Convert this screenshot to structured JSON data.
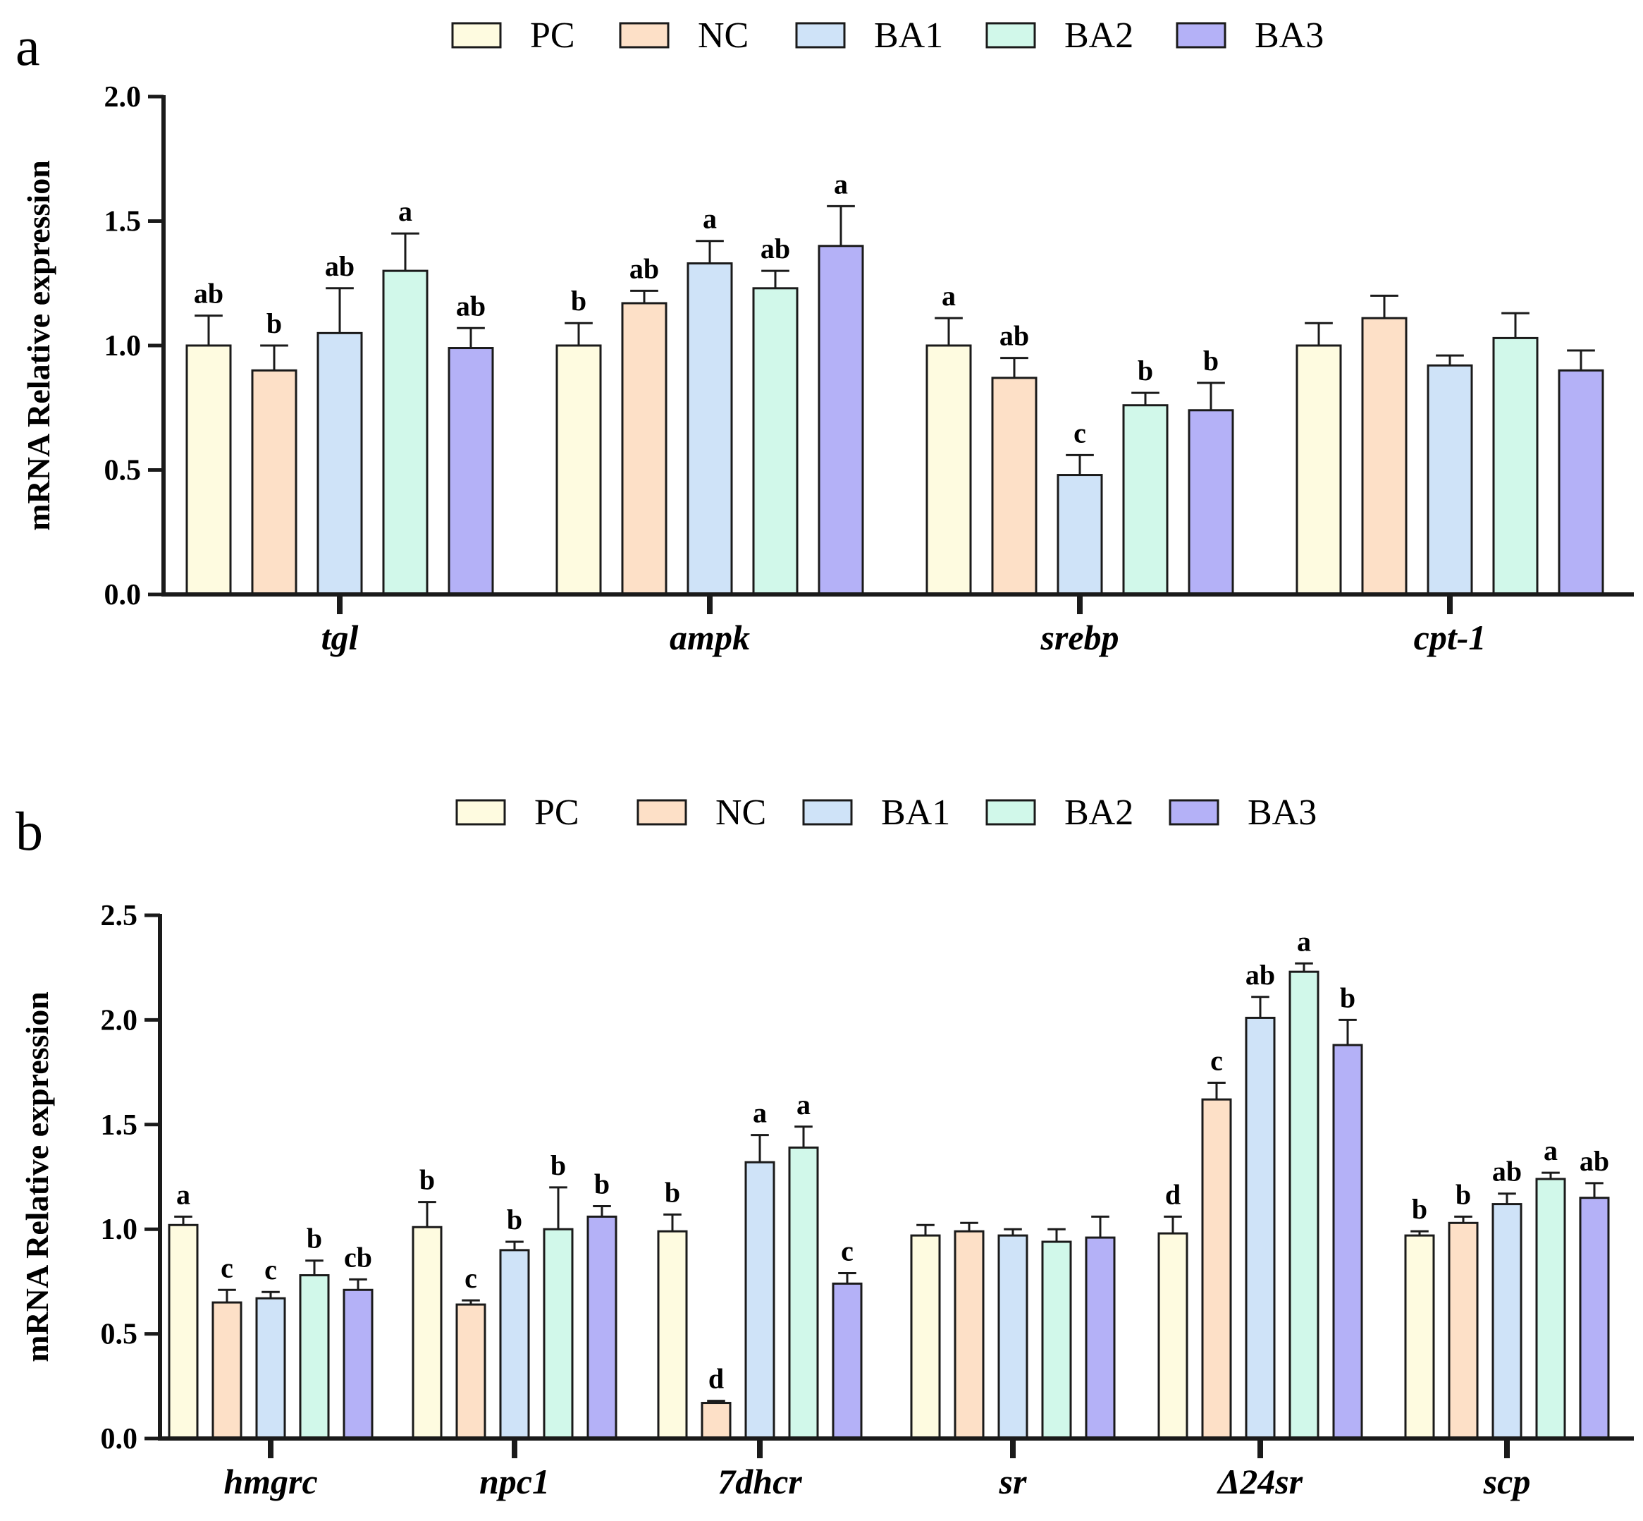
{
  "colors": {
    "PC": "#fefbe0",
    "NC": "#fde0c7",
    "BA1": "#cfe3f8",
    "BA2": "#d1f8ea",
    "BA3": "#b4b1f7",
    "stroke": "#1a1a1a"
  },
  "chart_data": [
    {
      "panel": "a",
      "type": "bar",
      "title": "",
      "xlabel": "",
      "ylabel": "mRNA Relative expression",
      "ylim": [
        0,
        2.0
      ],
      "yticks": [
        "0.0",
        "0.5",
        "1.0",
        "1.5",
        "2.0"
      ],
      "legend": [
        "PC",
        "NC",
        "BA1",
        "BA2",
        "BA3"
      ],
      "legend_position": "top-center",
      "categories": [
        "tgl",
        "ampk",
        "srebp",
        "cpt-1"
      ],
      "series": [
        {
          "name": "PC",
          "values": [
            1.0,
            1.0,
            1.0,
            1.0
          ],
          "errors": [
            0.12,
            0.09,
            0.11,
            0.09
          ],
          "labels": [
            "ab",
            "b",
            "a",
            ""
          ]
        },
        {
          "name": "NC",
          "values": [
            0.9,
            1.17,
            0.87,
            1.11
          ],
          "errors": [
            0.1,
            0.05,
            0.08,
            0.09
          ],
          "labels": [
            "b",
            "ab",
            "ab",
            ""
          ]
        },
        {
          "name": "BA1",
          "values": [
            1.05,
            1.33,
            0.48,
            0.92
          ],
          "errors": [
            0.18,
            0.09,
            0.08,
            0.04
          ],
          "labels": [
            "ab",
            "a",
            "c",
            ""
          ]
        },
        {
          "name": "BA2",
          "values": [
            1.3,
            1.23,
            0.76,
            1.03
          ],
          "errors": [
            0.15,
            0.07,
            0.05,
            0.1
          ],
          "labels": [
            "a",
            "ab",
            "b",
            ""
          ]
        },
        {
          "name": "BA3",
          "values": [
            0.99,
            1.4,
            0.74,
            0.9
          ],
          "errors": [
            0.08,
            0.16,
            0.11,
            0.08
          ],
          "labels": [
            "ab",
            "a",
            "b",
            ""
          ]
        }
      ]
    },
    {
      "panel": "b",
      "type": "bar",
      "title": "",
      "xlabel": "",
      "ylabel": "mRNA Relative expression",
      "ylim": [
        0,
        2.5
      ],
      "yticks": [
        "0.0",
        "0.5",
        "1.0",
        "1.5",
        "2.0",
        "2.5"
      ],
      "legend": [
        "PC",
        "NC",
        "BA1",
        "BA2",
        "BA3"
      ],
      "legend_position": "top-center",
      "categories": [
        "hmgrc",
        "npc1",
        "7dhcr",
        "sr",
        "Δ24sr",
        "scp"
      ],
      "series": [
        {
          "name": "PC",
          "values": [
            1.02,
            1.01,
            0.99,
            0.97,
            0.98,
            0.97
          ],
          "errors": [
            0.04,
            0.12,
            0.08,
            0.05,
            0.08,
            0.02
          ],
          "labels": [
            "a",
            "b",
            "b",
            "",
            "d",
            "b"
          ]
        },
        {
          "name": "NC",
          "values": [
            0.65,
            0.64,
            0.17,
            0.99,
            1.62,
            1.03
          ],
          "errors": [
            0.06,
            0.02,
            0.01,
            0.04,
            0.08,
            0.03
          ],
          "labels": [
            "c",
            "c",
            "d",
            "",
            "c",
            "b"
          ]
        },
        {
          "name": "BA1",
          "values": [
            0.67,
            0.9,
            1.32,
            0.97,
            2.01,
            1.12
          ],
          "errors": [
            0.03,
            0.04,
            0.13,
            0.03,
            0.1,
            0.05
          ],
          "labels": [
            "c",
            "b",
            "a",
            "",
            "ab",
            "ab"
          ]
        },
        {
          "name": "BA2",
          "values": [
            0.78,
            1.0,
            1.39,
            0.94,
            2.23,
            1.24
          ],
          "errors": [
            0.07,
            0.2,
            0.1,
            0.06,
            0.04,
            0.03
          ],
          "labels": [
            "b",
            "b",
            "a",
            "",
            "a",
            "a"
          ]
        },
        {
          "name": "BA3",
          "values": [
            0.71,
            1.06,
            0.74,
            0.96,
            1.88,
            1.15
          ],
          "errors": [
            0.05,
            0.05,
            0.05,
            0.1,
            0.12,
            0.07
          ],
          "labels": [
            "cb",
            "b",
            "c",
            "",
            "b",
            "ab"
          ]
        }
      ]
    }
  ]
}
